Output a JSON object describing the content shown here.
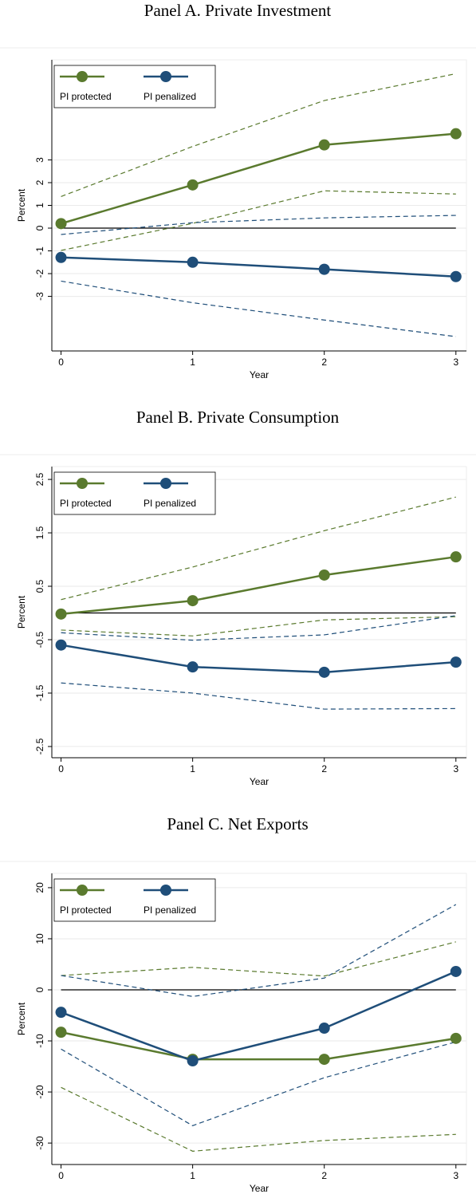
{
  "chart_data": [
    {
      "type": "line",
      "title": "Panel A. Private Investment",
      "ylabel": "Percent",
      "xlabel": "Year",
      "x": [
        0,
        1,
        2,
        3
      ],
      "xlim": [
        -0.07,
        3.08
      ],
      "xticks": [
        0,
        1,
        2,
        3
      ],
      "ylim": [
        -5.4,
        7.4
      ],
      "yticks": [
        -3,
        -2,
        -1,
        0,
        1,
        2,
        3
      ],
      "grid": true,
      "reference_line": 0,
      "legend": "top-left",
      "series": [
        {
          "name": "PI protected",
          "color": "#5a7a2e",
          "values": [
            0.2,
            1.9,
            3.66,
            4.15
          ],
          "ci_upper": [
            1.39,
            3.59,
            5.61,
            6.79
          ],
          "ci_lower": [
            -0.98,
            0.21,
            1.64,
            1.5
          ]
        },
        {
          "name": "PI penalized",
          "color": "#1f4e79",
          "values": [
            -1.29,
            -1.5,
            -1.81,
            -2.13
          ],
          "ci_upper": [
            -0.28,
            0.24,
            0.45,
            0.56
          ],
          "ci_lower": [
            -2.33,
            -3.28,
            -4.04,
            -4.77
          ]
        }
      ]
    },
    {
      "type": "line",
      "title": "Panel B. Private Consumption",
      "ylabel": "Percent",
      "xlabel": "Year",
      "x": [
        0,
        1,
        2,
        3
      ],
      "xlim": [
        -0.07,
        3.08
      ],
      "xticks": [
        0,
        1,
        2,
        3
      ],
      "ylim": [
        -2.71,
        2.74
      ],
      "yticks": [
        -2.5,
        -1.5,
        -0.5,
        0.5,
        1.5,
        2.5
      ],
      "grid": true,
      "reference_line": 0,
      "legend": "top-left",
      "series": [
        {
          "name": "PI protected",
          "color": "#5a7a2e",
          "values": [
            -0.02,
            0.23,
            0.71,
            1.05
          ],
          "ci_upper": [
            0.25,
            0.86,
            1.54,
            2.17
          ],
          "ci_lower": [
            -0.32,
            -0.43,
            -0.13,
            -0.07
          ]
        },
        {
          "name": "PI penalized",
          "color": "#1f4e79",
          "values": [
            -0.6,
            -1.01,
            -1.11,
            -0.92
          ],
          "ci_upper": [
            -0.37,
            -0.51,
            -0.41,
            -0.05
          ],
          "ci_lower": [
            -1.31,
            -1.5,
            -1.8,
            -1.79
          ]
        }
      ]
    },
    {
      "type": "line",
      "title": "Panel C. Net Exports",
      "ylabel": "Percent",
      "xlabel": "Year",
      "x": [
        0,
        1,
        2,
        3
      ],
      "xlim": [
        -0.07,
        3.08
      ],
      "xticks": [
        0,
        1,
        2,
        3
      ],
      "ylim": [
        -34.2,
        22.8
      ],
      "yticks": [
        -30,
        -20,
        -10,
        0,
        10,
        20
      ],
      "grid": true,
      "reference_line": 0,
      "legend": "top-left",
      "series": [
        {
          "name": "PI protected",
          "color": "#5a7a2e",
          "values": [
            -8.3,
            -13.6,
            -13.6,
            -9.5
          ],
          "ci_upper": [
            2.8,
            4.4,
            2.7,
            9.4
          ],
          "ci_lower": [
            -19.1,
            -31.6,
            -29.5,
            -28.3
          ]
        },
        {
          "name": "PI penalized",
          "color": "#1f4e79",
          "values": [
            -4.4,
            -13.9,
            -7.5,
            3.6
          ],
          "ci_upper": [
            2.8,
            -1.3,
            2.3,
            16.7
          ],
          "ci_lower": [
            -11.6,
            -26.6,
            -17.2,
            -10.2
          ]
        }
      ]
    }
  ]
}
